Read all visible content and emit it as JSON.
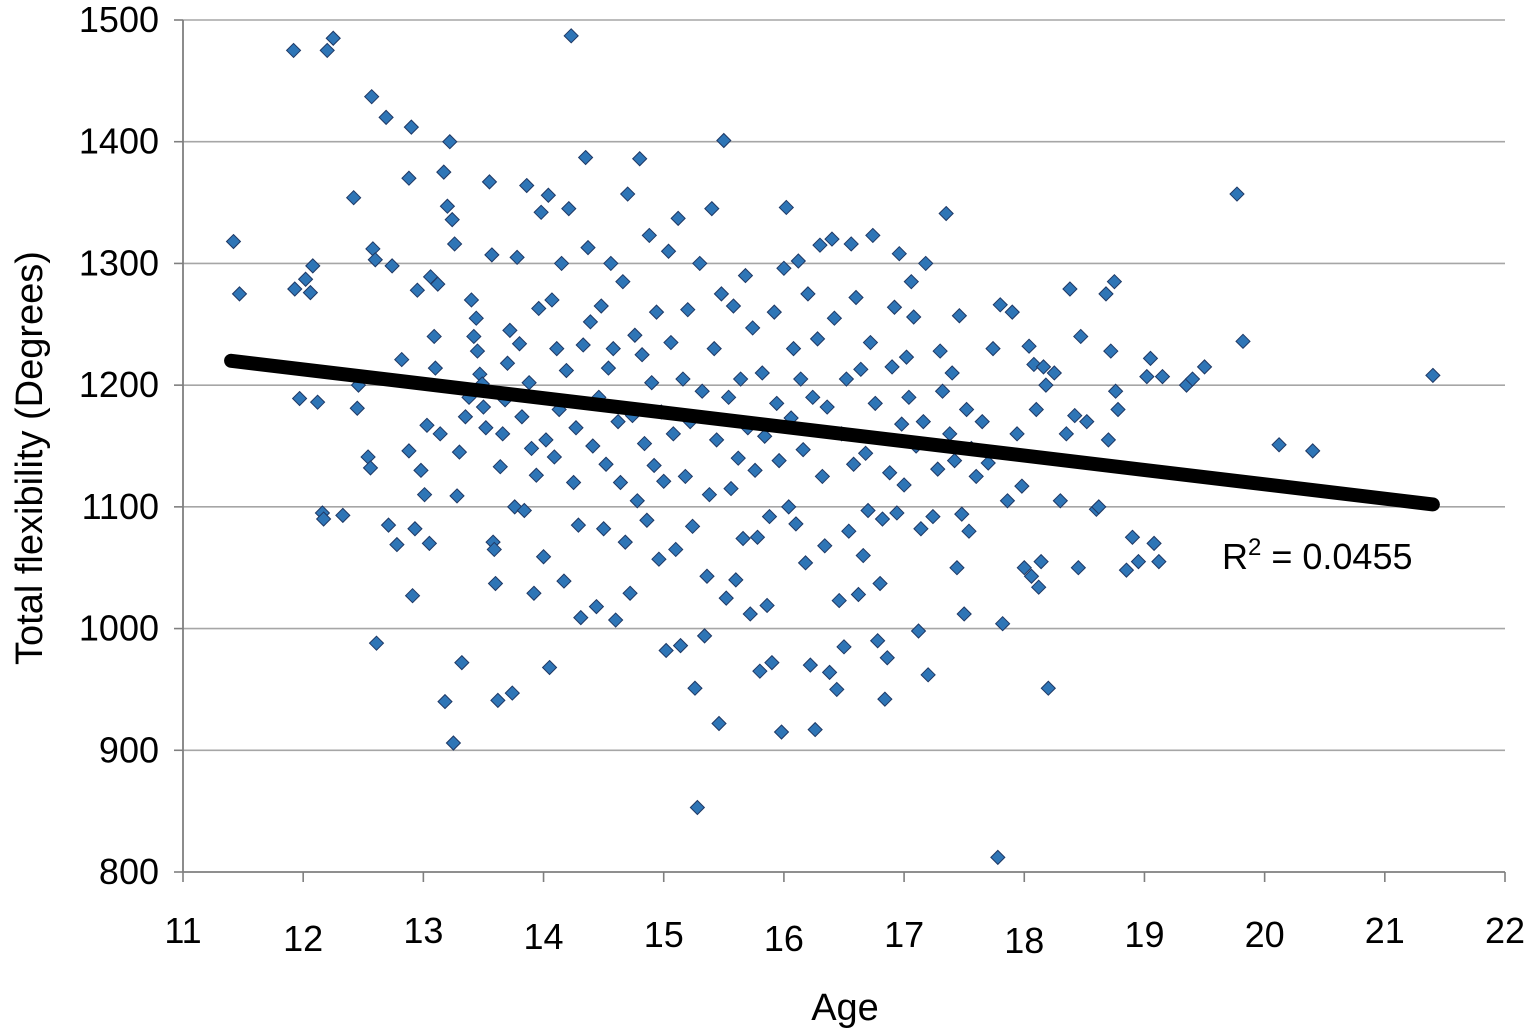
{
  "chart_data": {
    "type": "scatter",
    "title": "",
    "xlabel": "Age",
    "ylabel": "Total flexibility (Degrees)",
    "xlim": [
      11,
      22
    ],
    "ylim": [
      800,
      1500
    ],
    "x_ticks": [
      "11",
      "12",
      "13",
      "14",
      "15",
      "16",
      "17",
      "18",
      "19",
      "20",
      "21",
      "22"
    ],
    "y_ticks": [
      "800",
      "900",
      "1000",
      "1100",
      "1200",
      "1300",
      "1400",
      "1500"
    ],
    "grid": "horizontal",
    "legend": "none",
    "marker": "diamond",
    "marker_color": "#2e75b6",
    "trendline": {
      "x": [
        11.4,
        21.4
      ],
      "y": [
        1220,
        1102
      ],
      "color": "#000000"
    },
    "annotation": {
      "prefix": "R",
      "sup": "2",
      "text": " = 0.0455"
    },
    "points": [
      [
        11.42,
        1318
      ],
      [
        11.47,
        1275
      ],
      [
        11.92,
        1475
      ],
      [
        11.93,
        1279
      ],
      [
        11.97,
        1189
      ],
      [
        12.02,
        1287
      ],
      [
        12.06,
        1276
      ],
      [
        12.08,
        1298
      ],
      [
        12.12,
        1186
      ],
      [
        12.16,
        1095
      ],
      [
        12.17,
        1090
      ],
      [
        12.2,
        1475
      ],
      [
        12.25,
        1485
      ],
      [
        12.33,
        1093
      ],
      [
        12.42,
        1354
      ],
      [
        12.45,
        1181
      ],
      [
        12.46,
        1200
      ],
      [
        12.54,
        1141
      ],
      [
        12.56,
        1132
      ],
      [
        12.57,
        1437
      ],
      [
        12.58,
        1312
      ],
      [
        12.6,
        1303
      ],
      [
        12.61,
        988
      ],
      [
        12.69,
        1420
      ],
      [
        12.71,
        1085
      ],
      [
        12.74,
        1298
      ],
      [
        12.78,
        1069
      ],
      [
        12.82,
        1221
      ],
      [
        12.88,
        1370
      ],
      [
        12.88,
        1146
      ],
      [
        12.9,
        1412
      ],
      [
        12.91,
        1027
      ],
      [
        12.93,
        1082
      ],
      [
        12.95,
        1278
      ],
      [
        12.98,
        1130
      ],
      [
        13.01,
        1110
      ],
      [
        13.03,
        1167
      ],
      [
        13.05,
        1070
      ],
      [
        13.06,
        1289
      ],
      [
        13.09,
        1240
      ],
      [
        13.1,
        1214
      ],
      [
        13.12,
        1283
      ],
      [
        13.14,
        1160
      ],
      [
        13.17,
        1375
      ],
      [
        13.18,
        940
      ],
      [
        13.2,
        1347
      ],
      [
        13.22,
        1400
      ],
      [
        13.24,
        1336
      ],
      [
        13.25,
        906
      ],
      [
        13.26,
        1316
      ],
      [
        13.28,
        1109
      ],
      [
        13.3,
        1145
      ],
      [
        13.32,
        972
      ],
      [
        13.35,
        1174
      ],
      [
        13.38,
        1190
      ],
      [
        13.4,
        1270
      ],
      [
        13.42,
        1240
      ],
      [
        13.44,
        1255
      ],
      [
        13.45,
        1228
      ],
      [
        13.47,
        1209
      ],
      [
        13.49,
        1201
      ],
      [
        13.5,
        1182
      ],
      [
        13.52,
        1165
      ],
      [
        13.55,
        1367
      ],
      [
        13.57,
        1307
      ],
      [
        13.58,
        1071
      ],
      [
        13.59,
        1065
      ],
      [
        13.6,
        1037
      ],
      [
        13.62,
        941
      ],
      [
        13.64,
        1133
      ],
      [
        13.66,
        1160
      ],
      [
        13.68,
        1188
      ],
      [
        13.7,
        1218
      ],
      [
        13.72,
        1245
      ],
      [
        13.74,
        947
      ],
      [
        13.76,
        1100
      ],
      [
        13.78,
        1305
      ],
      [
        13.8,
        1234
      ],
      [
        13.82,
        1174
      ],
      [
        13.84,
        1097
      ],
      [
        13.86,
        1364
      ],
      [
        13.88,
        1202
      ],
      [
        13.9,
        1148
      ],
      [
        13.92,
        1029
      ],
      [
        13.94,
        1126
      ],
      [
        13.96,
        1263
      ],
      [
        13.98,
        1342
      ],
      [
        14.0,
        1059
      ],
      [
        14.02,
        1155
      ],
      [
        14.04,
        1356
      ],
      [
        14.05,
        968
      ],
      [
        14.07,
        1270
      ],
      [
        14.09,
        1141
      ],
      [
        14.11,
        1230
      ],
      [
        14.13,
        1180
      ],
      [
        14.15,
        1300
      ],
      [
        14.17,
        1039
      ],
      [
        14.19,
        1212
      ],
      [
        14.21,
        1345
      ],
      [
        14.23,
        1487
      ],
      [
        14.25,
        1120
      ],
      [
        14.27,
        1165
      ],
      [
        14.29,
        1085
      ],
      [
        14.31,
        1009
      ],
      [
        14.33,
        1233
      ],
      [
        14.35,
        1387
      ],
      [
        14.37,
        1313
      ],
      [
        14.39,
        1252
      ],
      [
        14.41,
        1150
      ],
      [
        14.44,
        1018
      ],
      [
        14.46,
        1190
      ],
      [
        14.48,
        1265
      ],
      [
        14.5,
        1082
      ],
      [
        14.52,
        1135
      ],
      [
        14.54,
        1214
      ],
      [
        14.56,
        1300
      ],
      [
        14.58,
        1230
      ],
      [
        14.6,
        1007
      ],
      [
        14.62,
        1170
      ],
      [
        14.64,
        1120
      ],
      [
        14.66,
        1285
      ],
      [
        14.68,
        1071
      ],
      [
        14.7,
        1357
      ],
      [
        14.72,
        1029
      ],
      [
        14.74,
        1175
      ],
      [
        14.76,
        1241
      ],
      [
        14.78,
        1105
      ],
      [
        14.8,
        1386
      ],
      [
        14.82,
        1225
      ],
      [
        14.84,
        1152
      ],
      [
        14.86,
        1089
      ],
      [
        14.88,
        1323
      ],
      [
        14.9,
        1202
      ],
      [
        14.92,
        1134
      ],
      [
        14.94,
        1260
      ],
      [
        14.96,
        1057
      ],
      [
        14.98,
        1178
      ],
      [
        15.0,
        1121
      ],
      [
        15.02,
        982
      ],
      [
        15.04,
        1310
      ],
      [
        15.06,
        1235
      ],
      [
        15.08,
        1160
      ],
      [
        15.1,
        1065
      ],
      [
        15.12,
        1337
      ],
      [
        15.14,
        986
      ],
      [
        15.16,
        1205
      ],
      [
        15.18,
        1125
      ],
      [
        15.2,
        1262
      ],
      [
        15.22,
        1170
      ],
      [
        15.24,
        1084
      ],
      [
        15.26,
        951
      ],
      [
        15.28,
        853
      ],
      [
        15.3,
        1300
      ],
      [
        15.32,
        1195
      ],
      [
        15.34,
        994
      ],
      [
        15.36,
        1043
      ],
      [
        15.38,
        1110
      ],
      [
        15.4,
        1345
      ],
      [
        15.42,
        1230
      ],
      [
        15.44,
        1155
      ],
      [
        15.46,
        922
      ],
      [
        15.48,
        1275
      ],
      [
        15.5,
        1401
      ],
      [
        15.52,
        1025
      ],
      [
        15.54,
        1190
      ],
      [
        15.56,
        1115
      ],
      [
        15.58,
        1265
      ],
      [
        15.6,
        1040
      ],
      [
        15.62,
        1140
      ],
      [
        15.64,
        1205
      ],
      [
        15.66,
        1074
      ],
      [
        15.68,
        1290
      ],
      [
        15.7,
        1165
      ],
      [
        15.72,
        1012
      ],
      [
        15.74,
        1247
      ],
      [
        15.76,
        1130
      ],
      [
        15.78,
        1075
      ],
      [
        15.8,
        965
      ],
      [
        15.82,
        1210
      ],
      [
        15.84,
        1158
      ],
      [
        15.86,
        1019
      ],
      [
        15.88,
        1092
      ],
      [
        15.9,
        972
      ],
      [
        15.92,
        1260
      ],
      [
        15.94,
        1185
      ],
      [
        15.96,
        1138
      ],
      [
        15.98,
        915
      ],
      [
        16.0,
        1296
      ],
      [
        16.02,
        1346
      ],
      [
        16.04,
        1100
      ],
      [
        16.06,
        1173
      ],
      [
        16.08,
        1230
      ],
      [
        16.1,
        1086
      ],
      [
        16.12,
        1302
      ],
      [
        16.14,
        1205
      ],
      [
        16.16,
        1147
      ],
      [
        16.18,
        1054
      ],
      [
        16.2,
        1275
      ],
      [
        16.22,
        970
      ],
      [
        16.24,
        1190
      ],
      [
        16.26,
        917
      ],
      [
        16.28,
        1238
      ],
      [
        16.3,
        1315
      ],
      [
        16.32,
        1125
      ],
      [
        16.34,
        1068
      ],
      [
        16.36,
        1182
      ],
      [
        16.38,
        964
      ],
      [
        16.4,
        1320
      ],
      [
        16.42,
        1255
      ],
      [
        16.44,
        950
      ],
      [
        16.46,
        1023
      ],
      [
        16.48,
        1160
      ],
      [
        16.5,
        985
      ],
      [
        16.52,
        1205
      ],
      [
        16.54,
        1080
      ],
      [
        16.56,
        1316
      ],
      [
        16.58,
        1135
      ],
      [
        16.6,
        1272
      ],
      [
        16.62,
        1028
      ],
      [
        16.64,
        1213
      ],
      [
        16.66,
        1060
      ],
      [
        16.68,
        1144
      ],
      [
        16.7,
        1097
      ],
      [
        16.72,
        1235
      ],
      [
        16.74,
        1323
      ],
      [
        16.76,
        1185
      ],
      [
        16.78,
        990
      ],
      [
        16.8,
        1037
      ],
      [
        16.82,
        1090
      ],
      [
        16.84,
        942
      ],
      [
        16.86,
        976
      ],
      [
        16.88,
        1128
      ],
      [
        16.9,
        1215
      ],
      [
        16.92,
        1264
      ],
      [
        16.94,
        1095
      ],
      [
        16.96,
        1308
      ],
      [
        16.98,
        1168
      ],
      [
        17.0,
        1118
      ],
      [
        17.02,
        1223
      ],
      [
        17.04,
        1190
      ],
      [
        17.06,
        1285
      ],
      [
        17.08,
        1256
      ],
      [
        17.1,
        1150
      ],
      [
        17.12,
        998
      ],
      [
        17.14,
        1082
      ],
      [
        17.16,
        1170
      ],
      [
        17.18,
        1300
      ],
      [
        17.2,
        962
      ],
      [
        17.24,
        1092
      ],
      [
        17.28,
        1131
      ],
      [
        17.3,
        1228
      ],
      [
        17.32,
        1195
      ],
      [
        17.35,
        1341
      ],
      [
        17.38,
        1160
      ],
      [
        17.4,
        1210
      ],
      [
        17.42,
        1138
      ],
      [
        17.44,
        1050
      ],
      [
        17.46,
        1257
      ],
      [
        17.48,
        1094
      ],
      [
        17.5,
        1012
      ],
      [
        17.52,
        1180
      ],
      [
        17.54,
        1080
      ],
      [
        17.56,
        1148
      ],
      [
        17.6,
        1125
      ],
      [
        17.65,
        1170
      ],
      [
        17.7,
        1136
      ],
      [
        17.74,
        1230
      ],
      [
        17.78,
        812
      ],
      [
        17.8,
        1266
      ],
      [
        17.82,
        1004
      ],
      [
        17.86,
        1105
      ],
      [
        17.9,
        1260
      ],
      [
        17.94,
        1160
      ],
      [
        17.98,
        1117
      ],
      [
        18.0,
        1050
      ],
      [
        18.04,
        1232
      ],
      [
        18.06,
        1043
      ],
      [
        18.08,
        1217
      ],
      [
        18.1,
        1180
      ],
      [
        18.12,
        1034
      ],
      [
        18.14,
        1055
      ],
      [
        18.16,
        1215
      ],
      [
        18.18,
        1200
      ],
      [
        18.2,
        951
      ],
      [
        18.25,
        1210
      ],
      [
        18.3,
        1105
      ],
      [
        18.35,
        1160
      ],
      [
        18.38,
        1279
      ],
      [
        18.42,
        1175
      ],
      [
        18.45,
        1050
      ],
      [
        18.47,
        1240
      ],
      [
        18.52,
        1170
      ],
      [
        18.6,
        1098
      ],
      [
        18.62,
        1100
      ],
      [
        18.68,
        1275
      ],
      [
        18.7,
        1155
      ],
      [
        18.72,
        1228
      ],
      [
        18.75,
        1285
      ],
      [
        18.76,
        1195
      ],
      [
        18.78,
        1180
      ],
      [
        18.85,
        1048
      ],
      [
        18.9,
        1075
      ],
      [
        18.95,
        1055
      ],
      [
        19.02,
        1207
      ],
      [
        19.05,
        1222
      ],
      [
        19.08,
        1070
      ],
      [
        19.12,
        1055
      ],
      [
        19.15,
        1207
      ],
      [
        19.35,
        1200
      ],
      [
        19.4,
        1205
      ],
      [
        19.5,
        1215
      ],
      [
        19.77,
        1357
      ],
      [
        19.82,
        1236
      ],
      [
        20.12,
        1151
      ],
      [
        20.4,
        1146
      ],
      [
        21.4,
        1208
      ]
    ]
  }
}
